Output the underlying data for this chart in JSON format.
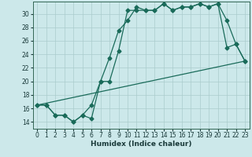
{
  "xlabel": "Humidex (Indice chaleur)",
  "bg_color": "#cce8ea",
  "grid_color": "#aacccc",
  "line_color": "#1a6b5a",
  "xlim": [
    -0.5,
    23.5
  ],
  "ylim": [
    13.0,
    31.8
  ],
  "yticks": [
    14,
    16,
    18,
    20,
    22,
    24,
    26,
    28,
    30
  ],
  "xticks": [
    0,
    1,
    2,
    3,
    4,
    5,
    6,
    7,
    8,
    9,
    10,
    11,
    12,
    13,
    14,
    15,
    16,
    17,
    18,
    19,
    20,
    21,
    22,
    23
  ],
  "xtick_labels": [
    "0",
    "1",
    "2",
    "3",
    "4",
    "5",
    "6",
    "7",
    "8",
    "9",
    "10",
    "11",
    "12",
    "13",
    "14",
    "15",
    "16",
    "17",
    "18",
    "19",
    "20",
    "21",
    "22",
    "23"
  ],
  "line1_x": [
    0,
    1,
    2,
    3,
    4,
    5,
    6,
    7,
    8,
    9,
    10,
    11,
    12,
    13,
    14,
    15,
    16,
    17,
    18,
    19,
    20,
    21,
    22,
    23
  ],
  "line1_y": [
    16.5,
    16.5,
    15.0,
    15.0,
    14.0,
    15.0,
    14.5,
    20.0,
    23.5,
    27.5,
    29.0,
    31.0,
    30.5,
    30.5,
    31.5,
    30.5,
    31.0,
    31.0,
    31.5,
    31.0,
    31.5,
    29.0,
    25.5,
    23.0
  ],
  "line2_x": [
    0,
    1,
    2,
    3,
    4,
    5,
    6,
    7,
    8,
    9,
    10,
    11,
    12,
    13,
    14,
    15,
    16,
    17,
    18,
    19,
    20,
    21,
    22,
    23
  ],
  "line2_y": [
    16.5,
    16.5,
    15.0,
    15.0,
    14.0,
    15.0,
    16.5,
    20.0,
    20.0,
    24.5,
    30.5,
    30.5,
    30.5,
    30.5,
    31.5,
    30.5,
    31.0,
    31.0,
    31.5,
    31.0,
    31.5,
    25.0,
    25.5,
    23.0
  ],
  "line3_x": [
    0,
    23
  ],
  "line3_y": [
    16.5,
    23.0
  ],
  "marker_size": 2.5,
  "linewidth": 0.9
}
